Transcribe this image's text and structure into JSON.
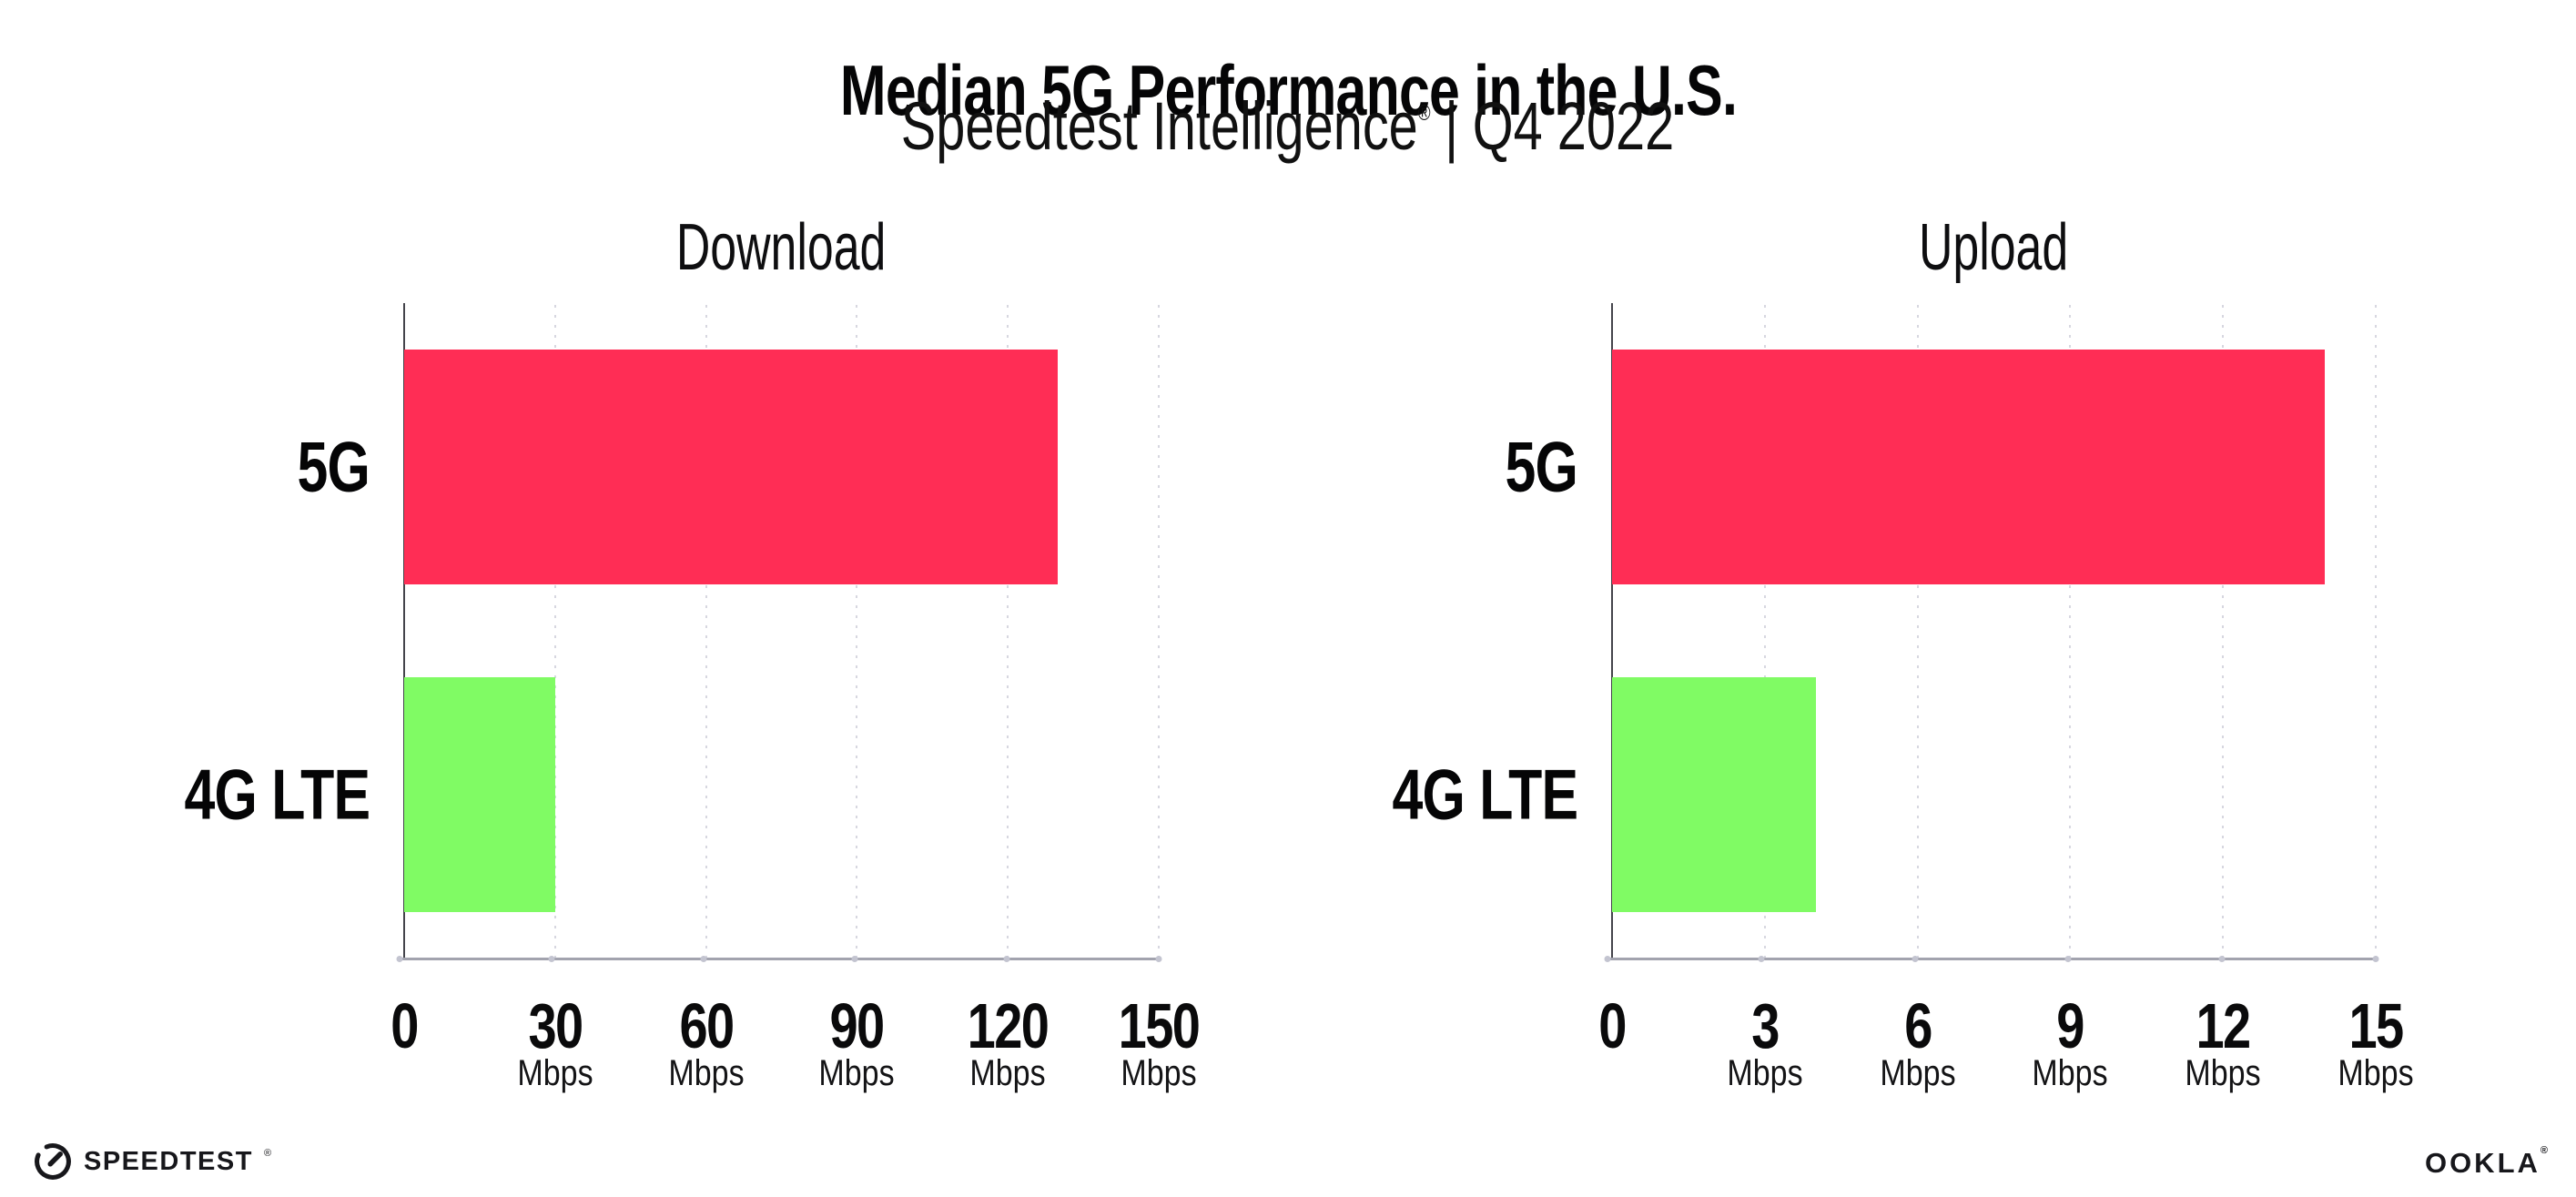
{
  "header": {
    "title": "Median 5G Performance in the U.S.",
    "subtitle": {
      "brand": "Speedtest Intelligence",
      "registered_mark": "®",
      "separator": "|",
      "period": "Q4 2022"
    }
  },
  "chart_data": [
    {
      "type": "bar",
      "orientation": "horizontal",
      "title": "Download",
      "categories": [
        "5G",
        "4G LTE"
      ],
      "values": [
        130,
        30
      ],
      "unit": "Mbps",
      "xlim": [
        0,
        150
      ],
      "xticks": [
        0,
        30,
        60,
        90,
        120,
        150
      ],
      "bar_colors": [
        "#FF2D55",
        "#80FB64"
      ],
      "grid": "vertical-dotted",
      "legend": "none"
    },
    {
      "type": "bar",
      "orientation": "horizontal",
      "title": "Upload",
      "categories": [
        "5G",
        "4G LTE"
      ],
      "values": [
        14,
        4
      ],
      "unit": "Mbps",
      "xlim": [
        0,
        15
      ],
      "xticks": [
        0,
        3,
        6,
        9,
        12,
        15
      ],
      "bar_colors": [
        "#FF2D55",
        "#80FB64"
      ],
      "grid": "vertical-dotted",
      "legend": "none"
    }
  ],
  "footer": {
    "speedtest_wordmark": "SPEEDTEST",
    "speedtest_mark": "®",
    "ookla_wordmark": "OOKLA",
    "ookla_mark": "®"
  },
  "colors": {
    "bar_5g": "#FF2D55",
    "bar_4g_lte": "#80FB64",
    "background": "#FFFFFF",
    "text": "#0B0B0C",
    "axis_line": "#44444B",
    "baseline": "#A2A3AE",
    "gridline_dots": "#D7D7E0"
  }
}
